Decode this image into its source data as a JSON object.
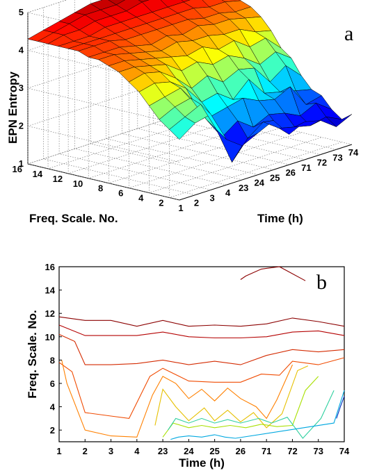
{
  "chart_data": [
    {
      "type": "surface",
      "panel_label": "a",
      "zlabel": "EPN Entropy",
      "ylabel": "Freq. Scale. No.",
      "xlabel": "Time (h)",
      "zlim": [
        1,
        5
      ],
      "z_ticks": [
        "1",
        "2",
        "3",
        "4",
        "5"
      ],
      "y_ticks": [
        "2",
        "4",
        "6",
        "8",
        "10",
        "12",
        "14",
        "16"
      ],
      "x_ticks": [
        "1",
        "2",
        "3",
        "4",
        "23",
        "24",
        "25",
        "26",
        "71",
        "72",
        "73",
        "74"
      ],
      "freq_scales": [
        1,
        2,
        3,
        4,
        5,
        6,
        7,
        8,
        9,
        10,
        11,
        12,
        13,
        14,
        15,
        16
      ],
      "z": [
        [
          2.6,
          2.9,
          3.0,
          2.2,
          1.9,
          2.1,
          2.3,
          1.8,
          2.0,
          1.9,
          1.6,
          1.8
        ],
        [
          2.8,
          3.0,
          3.2,
          2.4,
          1.4,
          1.9,
          2.2,
          1.9,
          1.8,
          1.7,
          1.8,
          1.6
        ],
        [
          3.0,
          3.2,
          3.3,
          2.6,
          2.0,
          2.3,
          2.0,
          2.2,
          2.1,
          1.9,
          2.1,
          1.8
        ],
        [
          3.3,
          3.4,
          3.5,
          2.9,
          2.5,
          2.6,
          2.7,
          2.5,
          2.4,
          2.6,
          2.0,
          2.1
        ],
        [
          3.6,
          3.7,
          3.6,
          3.3,
          2.8,
          2.9,
          2.6,
          3.0,
          2.5,
          2.4,
          2.3,
          2.2
        ],
        [
          3.8,
          3.9,
          3.8,
          3.5,
          3.1,
          3.3,
          3.0,
          3.2,
          3.1,
          2.6,
          2.9,
          2.5
        ],
        [
          4.0,
          4.0,
          3.9,
          3.8,
          3.5,
          3.6,
          3.4,
          3.5,
          3.3,
          3.0,
          3.2,
          2.9
        ],
        [
          4.1,
          4.1,
          4.0,
          3.9,
          3.8,
          3.7,
          3.8,
          3.6,
          3.7,
          3.4,
          3.5,
          3.1
        ],
        [
          4.2,
          4.2,
          4.1,
          4.0,
          3.9,
          4.0,
          3.9,
          3.9,
          3.8,
          3.8,
          3.6,
          3.5
        ],
        [
          4.2,
          4.2,
          4.2,
          4.1,
          4.0,
          4.1,
          4.0,
          4.1,
          4.0,
          4.0,
          3.9,
          3.8
        ],
        [
          4.3,
          4.3,
          4.3,
          4.2,
          4.2,
          4.2,
          4.2,
          4.2,
          4.1,
          4.1,
          4.0,
          4.0
        ],
        [
          4.3,
          4.3,
          4.3,
          4.3,
          4.3,
          4.3,
          4.3,
          4.3,
          4.3,
          4.2,
          4.2,
          4.1
        ],
        [
          4.3,
          4.3,
          4.3,
          4.4,
          4.4,
          4.4,
          4.4,
          4.4,
          4.4,
          4.4,
          4.3,
          4.3
        ],
        [
          4.3,
          4.4,
          4.4,
          4.5,
          4.5,
          4.5,
          4.6,
          4.6,
          4.6,
          4.6,
          4.5,
          4.4
        ],
        [
          4.3,
          4.4,
          4.5,
          4.6,
          4.6,
          4.6,
          4.7,
          4.8,
          4.8,
          4.7,
          4.6,
          4.5
        ],
        [
          4.3,
          4.4,
          4.5,
          4.6,
          4.7,
          4.7,
          4.8,
          4.9,
          4.9,
          4.8,
          4.8,
          4.6
        ]
      ],
      "grid": true,
      "colormap": "jet"
    },
    {
      "type": "contour",
      "panel_label": "b",
      "xlabel": "Time (h)",
      "ylabel": "Freq. Scale. No.",
      "x_ticks": [
        "1",
        "2",
        "3",
        "4",
        "23",
        "24",
        "25",
        "26",
        "71",
        "72",
        "73",
        "74"
      ],
      "y_ticks": [
        "2",
        "4",
        "6",
        "8",
        "10",
        "12",
        "14",
        "16"
      ],
      "ylim": [
        1,
        16
      ],
      "grid": false,
      "colormap": "jet",
      "contour_levels": [
        {
          "level": 4.0,
          "color": "#8b0000",
          "x": [
            1,
            2,
            3,
            4,
            5,
            6,
            7,
            8,
            9,
            10,
            11,
            12
          ],
          "y": [
            11.7,
            11.4,
            11.4,
            10.9,
            11.4,
            10.9,
            11.0,
            10.9,
            11.1,
            11.6,
            11.3,
            10.9
          ]
        },
        {
          "level": 4.0,
          "color": "#8b0000",
          "x": [
            8.0,
            8.2,
            8.8,
            9.5,
            10.0,
            10.5
          ],
          "y": [
            14.9,
            15.2,
            15.8,
            16.0,
            15.4,
            14.8
          ]
        },
        {
          "level": 3.9,
          "color": "#b40000",
          "x": [
            1,
            2,
            3,
            4,
            5,
            6,
            7,
            8,
            9,
            10,
            11,
            12
          ],
          "y": [
            11.0,
            10.1,
            10.1,
            10.1,
            10.4,
            10.0,
            9.9,
            9.9,
            10.0,
            10.4,
            10.5,
            10.1
          ]
        },
        {
          "level": 3.7,
          "color": "#d42a00",
          "x": [
            1,
            1.6,
            2,
            3,
            4,
            5,
            6,
            7,
            8,
            9,
            10,
            11,
            12
          ],
          "y": [
            10.2,
            9.6,
            7.6,
            7.6,
            7.7,
            8.0,
            7.6,
            7.9,
            7.6,
            8.4,
            8.9,
            8.7,
            8.9
          ]
        },
        {
          "level": 3.5,
          "color": "#f04a00",
          "x": [
            1,
            1.5,
            2,
            3,
            3.7,
            4.5,
            5,
            6,
            7,
            8,
            8.8,
            9.5,
            10,
            11,
            12
          ],
          "y": [
            7.8,
            7.0,
            3.5,
            3.2,
            3.0,
            6.6,
            7.3,
            6.2,
            6.1,
            6.1,
            6.8,
            6.7,
            7.9,
            7.6,
            8.2
          ]
        },
        {
          "level": 3.2,
          "color": "#ff8000",
          "x": [
            1.1,
            1.3,
            2,
            3,
            4,
            4.6,
            5,
            5.5,
            6,
            6.5,
            7,
            7.5,
            8,
            8.6,
            9,
            9.4,
            10
          ],
          "y": [
            8.0,
            6.0,
            2.0,
            1.5,
            1.4,
            5.0,
            6.6,
            6.0,
            4.7,
            5.5,
            4.5,
            5.6,
            4.7,
            4.0,
            3.0,
            4.6,
            7.6
          ]
        },
        {
          "level": 3.0,
          "color": "#e6c000",
          "x": [
            4.7,
            5.0,
            5.5,
            6.0,
            6.6,
            7.0,
            7.5,
            8.0,
            8.5,
            9.0,
            9.6,
            10.2,
            10.6
          ],
          "y": [
            2.4,
            5.5,
            4.0,
            2.8,
            3.9,
            2.8,
            3.7,
            2.7,
            3.5,
            2.2,
            3.4,
            7.1,
            7.5
          ]
        },
        {
          "level": 2.7,
          "color": "#a8e000",
          "x": [
            5.0,
            5.4,
            6.0,
            6.5,
            7.0,
            7.6,
            8.2,
            8.8,
            9.4,
            10.0,
            10.5,
            11.0
          ],
          "y": [
            1.4,
            2.6,
            2.2,
            2.4,
            2.2,
            2.4,
            2.2,
            2.5,
            2.3,
            2.4,
            5.4,
            6.6
          ]
        },
        {
          "level": 2.4,
          "color": "#30d0a0",
          "x": [
            5.2,
            5.5,
            6.0,
            6.5,
            7.0,
            7.5,
            8.0,
            8.7,
            9.2,
            9.8,
            10.4,
            11.1,
            11.6
          ],
          "y": [
            2.0,
            3.0,
            2.6,
            3.0,
            2.6,
            2.9,
            2.6,
            3.0,
            2.6,
            3.1,
            1.3,
            3.0,
            5.4
          ]
        },
        {
          "level": 2.1,
          "color": "#00a8e0",
          "x": [
            5.3,
            5.6,
            6.0,
            6.5,
            7.0,
            7.4,
            7.8,
            11.6,
            11.8,
            12.0
          ],
          "y": [
            1.2,
            1.4,
            1.5,
            1.4,
            1.6,
            1.4,
            1.3,
            2.6,
            4.0,
            5.4
          ]
        },
        {
          "level": 1.8,
          "color": "#0030c0",
          "x": [
            11.7,
            11.85,
            12.0
          ],
          "y": [
            3.0,
            4.0,
            4.9
          ]
        }
      ]
    }
  ]
}
